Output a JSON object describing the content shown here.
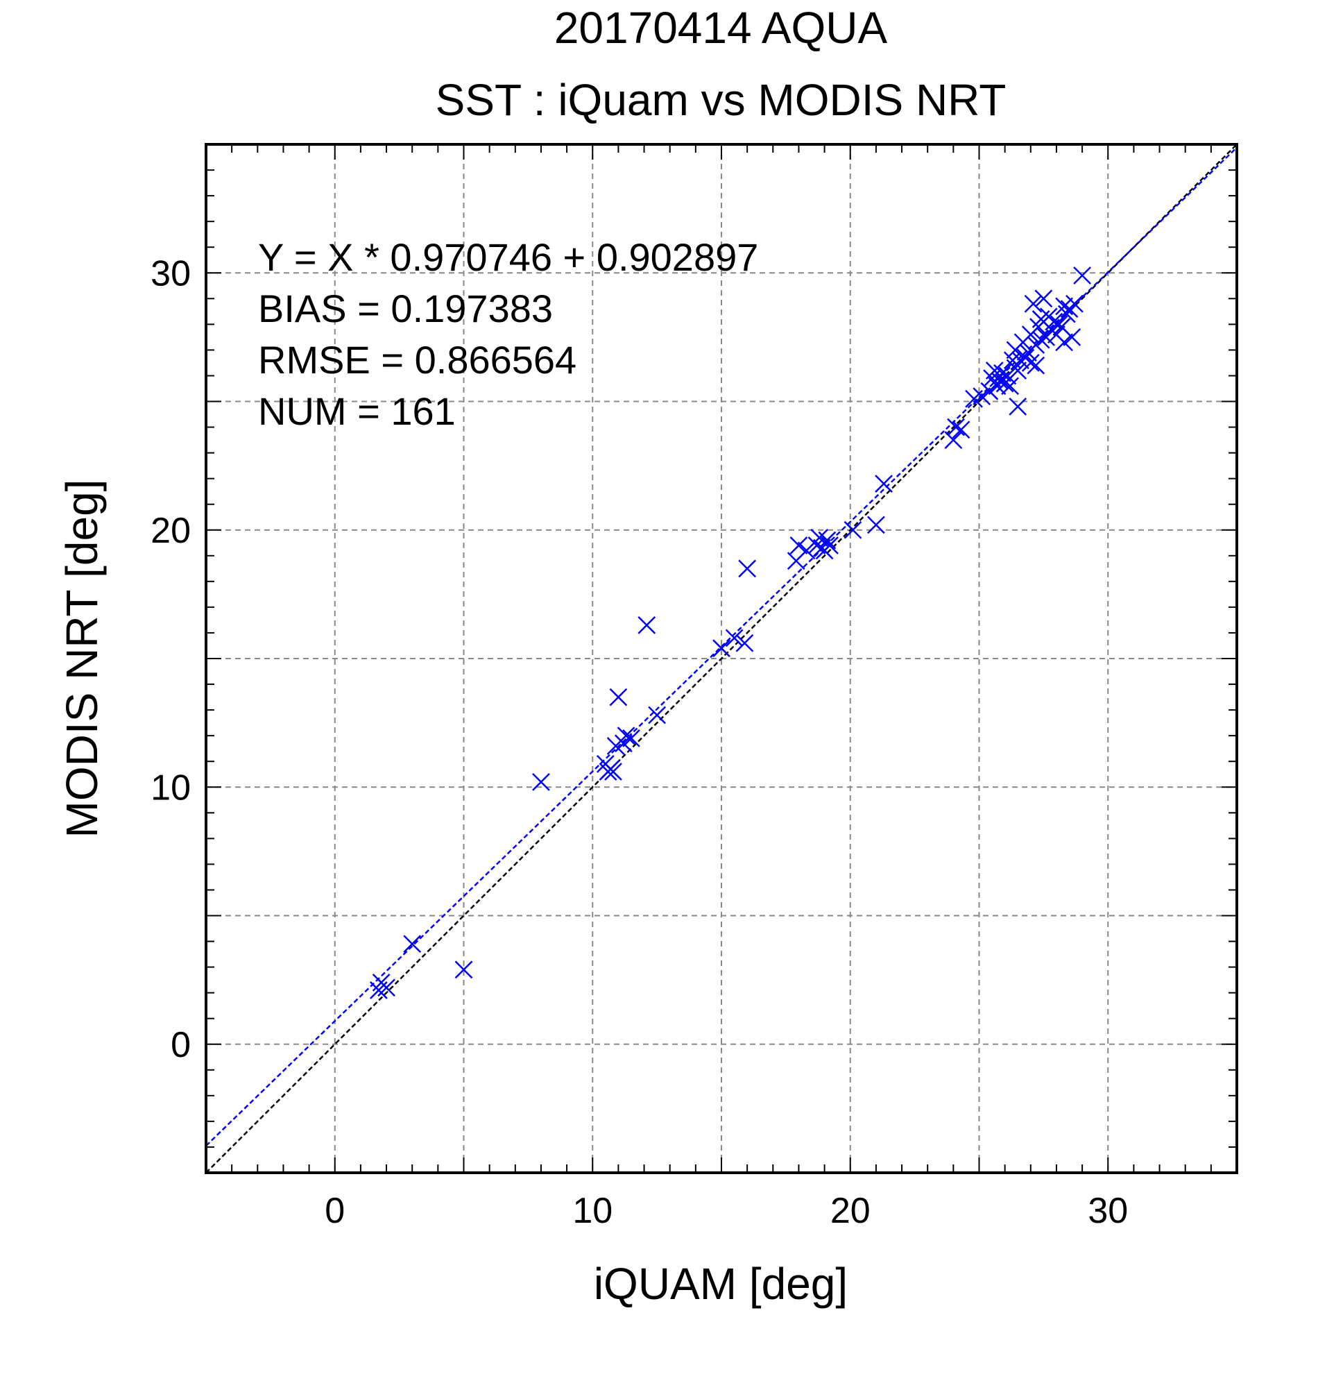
{
  "chart_data": {
    "type": "scatter",
    "title": "20170414 AQUA",
    "subtitle": "SST : iQuam vs MODIS NRT",
    "xlabel": "iQUAM [deg]",
    "ylabel": "MODIS NRT [deg]",
    "xlim": [
      -5,
      35
    ],
    "ylim": [
      -5,
      35
    ],
    "xticks": [
      0,
      10,
      20,
      30
    ],
    "yticks": [
      0,
      10,
      20,
      30
    ],
    "grid": true,
    "marker": "x",
    "marker_color": "#0000ff",
    "stats": [
      "Y = X * 0.970746 + 0.902897",
      "BIAS = 0.197383",
      "RMSE = 0.866564",
      "NUM = 161"
    ],
    "reference_lines": [
      {
        "kind": "identity",
        "slope": 1,
        "intercept": 0,
        "color": "#000000",
        "style": "dashed"
      },
      {
        "kind": "fit",
        "slope": 0.970746,
        "intercept": 0.902897,
        "color": "#0000ff",
        "style": "dashed"
      }
    ],
    "points": [
      [
        1.7,
        2.1
      ],
      [
        1.8,
        2.4
      ],
      [
        2.0,
        2.2
      ],
      [
        3.0,
        3.9
      ],
      [
        5.0,
        2.9
      ],
      [
        8.0,
        10.2
      ],
      [
        10.5,
        10.9
      ],
      [
        10.6,
        10.6
      ],
      [
        10.7,
        10.7
      ],
      [
        10.8,
        10.6
      ],
      [
        10.9,
        11.6
      ],
      [
        11.0,
        13.5
      ],
      [
        11.2,
        11.7
      ],
      [
        11.3,
        12.0
      ],
      [
        11.5,
        11.9
      ],
      [
        12.1,
        16.3
      ],
      [
        12.5,
        12.8
      ],
      [
        15.0,
        15.4
      ],
      [
        15.5,
        15.8
      ],
      [
        15.9,
        15.6
      ],
      [
        16.0,
        18.5
      ],
      [
        17.9,
        18.8
      ],
      [
        18.0,
        19.4
      ],
      [
        18.3,
        19.2
      ],
      [
        18.7,
        19.4
      ],
      [
        18.8,
        19.7
      ],
      [
        18.9,
        19.3
      ],
      [
        19.0,
        19.2
      ],
      [
        19.1,
        19.6
      ],
      [
        19.2,
        19.4
      ],
      [
        20.1,
        20.0
      ],
      [
        21.0,
        20.2
      ],
      [
        21.3,
        21.8
      ],
      [
        24.0,
        23.5
      ],
      [
        24.1,
        24.0
      ],
      [
        24.3,
        23.9
      ],
      [
        24.8,
        25.1
      ],
      [
        25.1,
        25.2
      ],
      [
        25.4,
        25.4
      ],
      [
        25.5,
        25.9
      ],
      [
        25.6,
        26.2
      ],
      [
        25.7,
        25.6
      ],
      [
        25.8,
        25.8
      ],
      [
        25.9,
        26.1
      ],
      [
        26.0,
        25.7
      ],
      [
        26.1,
        26.0
      ],
      [
        26.2,
        25.6
      ],
      [
        26.3,
        26.6
      ],
      [
        26.4,
        26.3
      ],
      [
        26.4,
        27.0
      ],
      [
        26.5,
        26.2
      ],
      [
        26.5,
        24.8
      ],
      [
        26.6,
        26.6
      ],
      [
        26.7,
        27.3
      ],
      [
        26.8,
        26.7
      ],
      [
        26.9,
        26.9
      ],
      [
        27.0,
        26.5
      ],
      [
        27.0,
        27.6
      ],
      [
        27.1,
        28.8
      ],
      [
        27.2,
        27.2
      ],
      [
        27.2,
        26.4
      ],
      [
        27.3,
        27.9
      ],
      [
        27.4,
        27.4
      ],
      [
        27.4,
        28.2
      ],
      [
        27.5,
        29.0
      ],
      [
        27.6,
        27.5
      ],
      [
        27.7,
        28.3
      ],
      [
        27.8,
        27.8
      ],
      [
        27.9,
        28.1
      ],
      [
        28.0,
        27.6
      ],
      [
        28.1,
        28.0
      ],
      [
        28.2,
        27.9
      ],
      [
        28.3,
        27.3
      ],
      [
        28.3,
        28.7
      ],
      [
        28.4,
        28.4
      ],
      [
        28.5,
        28.6
      ],
      [
        28.6,
        27.5
      ],
      [
        28.7,
        28.8
      ],
      [
        29.0,
        29.9
      ]
    ]
  }
}
